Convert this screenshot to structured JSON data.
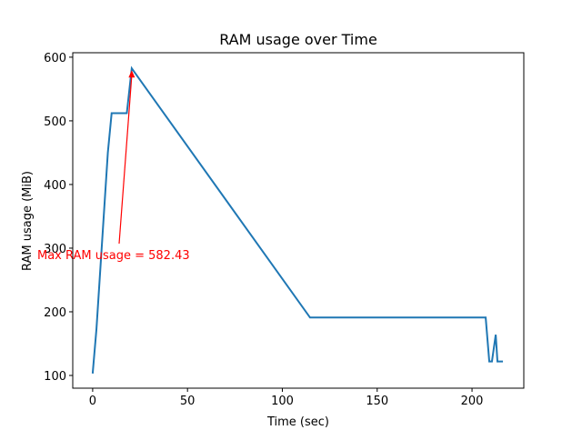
{
  "chart_data": {
    "type": "line",
    "title": "RAM usage over Time",
    "x_label": "Time (sec)",
    "y_label": "RAM usage (MiB)",
    "annotation": "Max RAM usage = 582.43",
    "x": [
      0,
      2,
      8,
      10,
      18,
      20.6,
      114.6,
      207.2,
      209.1,
      210.5,
      212.5,
      213.4,
      216.3
    ],
    "series": [
      {
        "name": "RAM usage",
        "color": "#1f77b4",
        "values": [
          103,
          173,
          450,
          512,
          512,
          582.43,
          191,
          191,
          122,
          122,
          164,
          122,
          122
        ]
      }
    ],
    "xlim": [
      -10.5,
      227.3
    ],
    "ylim": [
      80,
      607
    ],
    "xticks": [
      0,
      50,
      100,
      150,
      200
    ],
    "yticks": [
      100,
      200,
      300,
      400,
      500,
      600
    ],
    "annotation_color": "#ff0000"
  }
}
